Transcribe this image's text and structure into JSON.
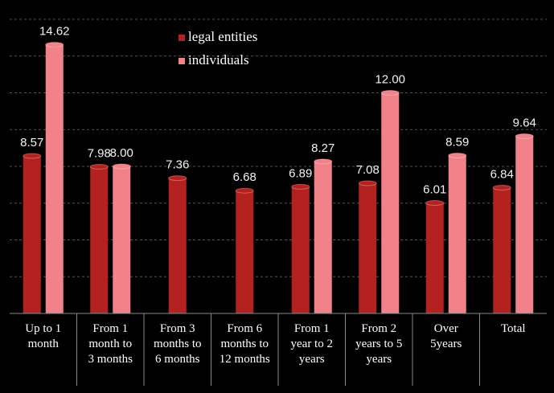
{
  "chart_data": {
    "type": "bar",
    "categories": [
      "Up to 1\nmonth",
      "From 1\nmonth to\n3 months",
      "From 3\nmonths to\n6 months",
      "From 6\nmonths to\n12 months",
      "From 1\nyear to 2\nyears",
      "From 2\nyears to 5\nyears",
      "Over\n5years",
      "Total"
    ],
    "series": [
      {
        "name": "legal entities",
        "color": "#b3221f",
        "values": [
          8.57,
          7.98,
          7.36,
          6.68,
          6.89,
          7.08,
          6.01,
          6.84
        ],
        "value_labels": [
          "8.57",
          "7.98",
          "7.36",
          "6.68",
          "6.89",
          "7.08",
          "6.01",
          "6.84"
        ]
      },
      {
        "name": "individuals",
        "color": "#f2828a",
        "values": [
          14.62,
          8.0,
          null,
          null,
          8.27,
          12.0,
          8.59,
          9.64
        ],
        "value_labels": [
          "14.62",
          "8.00",
          null,
          null,
          "8.27",
          "12.00",
          "8.59",
          "9.64"
        ]
      }
    ],
    "ylim": [
      0,
      16
    ],
    "yticks": [
      0,
      2,
      4,
      6,
      8,
      10,
      12,
      14,
      16
    ],
    "grid": true
  }
}
